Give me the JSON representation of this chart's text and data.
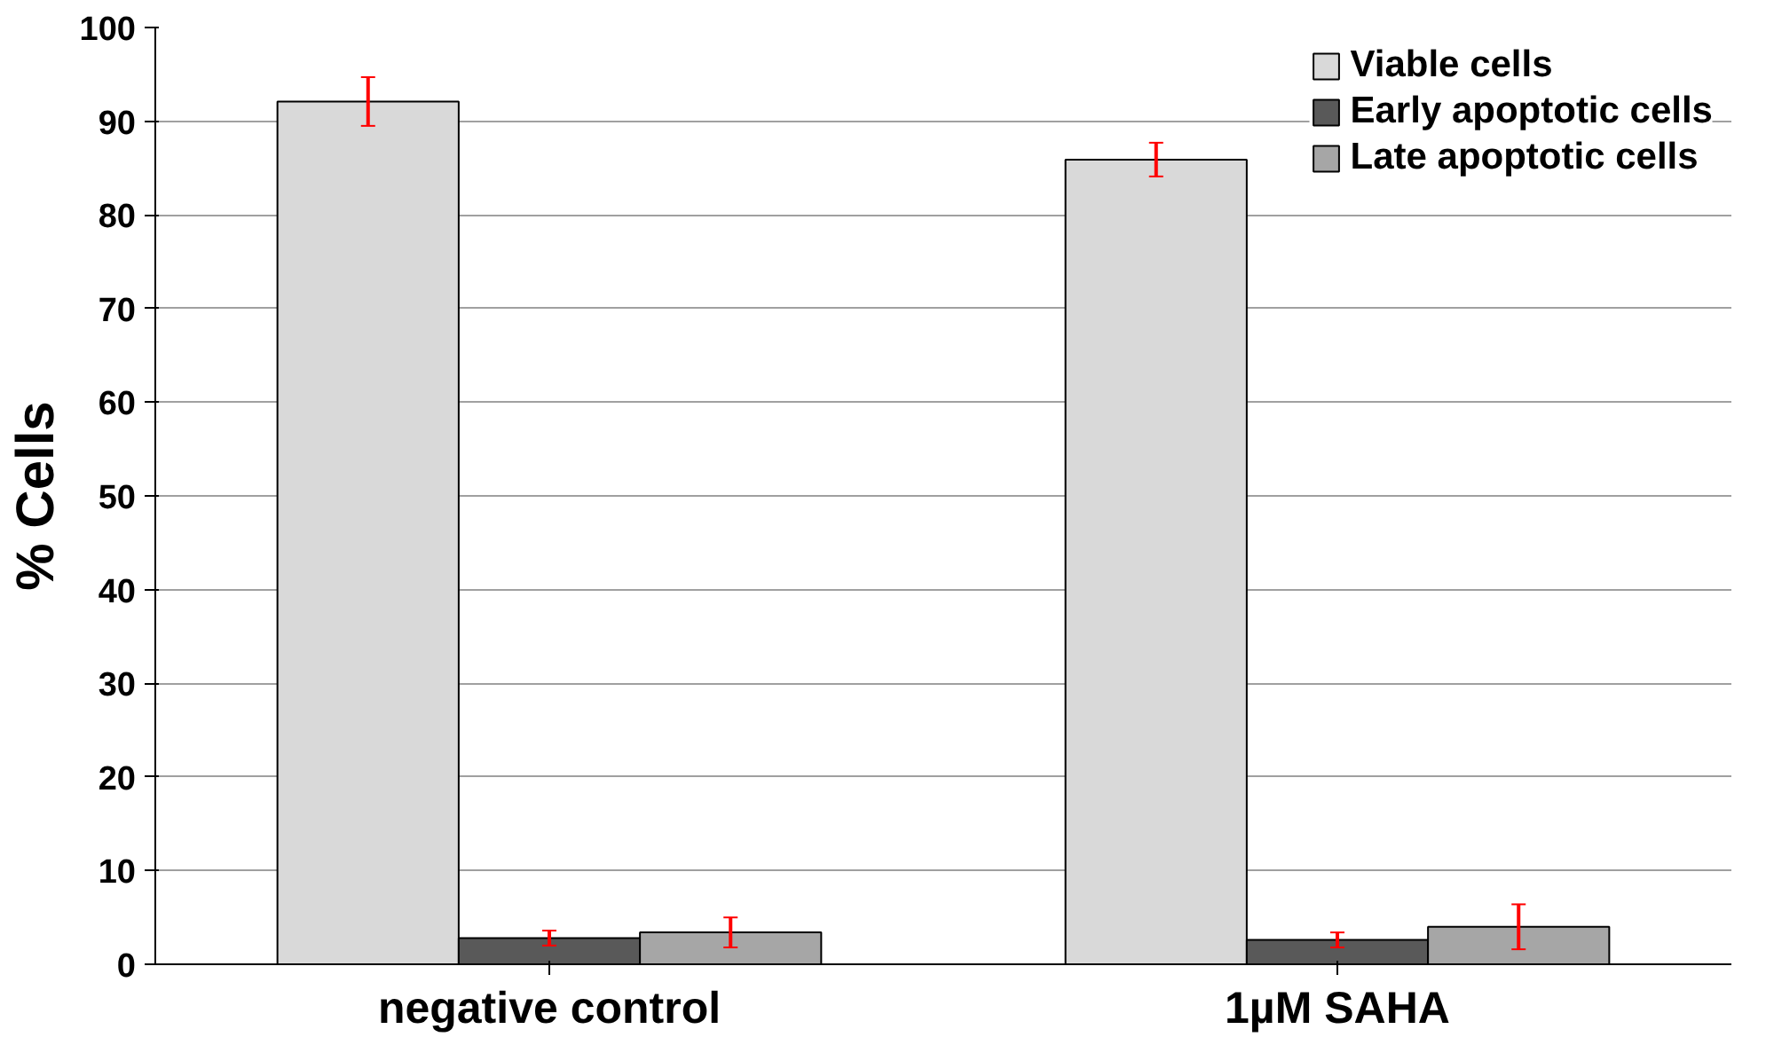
{
  "chart_data": {
    "type": "bar",
    "ylabel": "% Cells",
    "categories": [
      "negative control",
      "1µM SAHA"
    ],
    "series": [
      {
        "name": "Viable cells",
        "color": "#d9d9d9",
        "values": [
          92.1,
          85.9
        ],
        "errors": [
          2.6,
          1.8
        ]
      },
      {
        "name": "Early apoptotic cells",
        "color": "#595959",
        "values": [
          2.8,
          2.6
        ],
        "errors": [
          0.8,
          0.8
        ]
      },
      {
        "name": "Late apoptotic cells",
        "color": "#a6a6a6",
        "values": [
          3.4,
          4.0
        ],
        "errors": [
          1.6,
          2.4
        ]
      }
    ],
    "ylim": [
      0,
      100
    ],
    "yticks": [
      0,
      10,
      20,
      30,
      40,
      50,
      60,
      70,
      80,
      90,
      100
    ],
    "grid": "y",
    "legend": "top right"
  }
}
